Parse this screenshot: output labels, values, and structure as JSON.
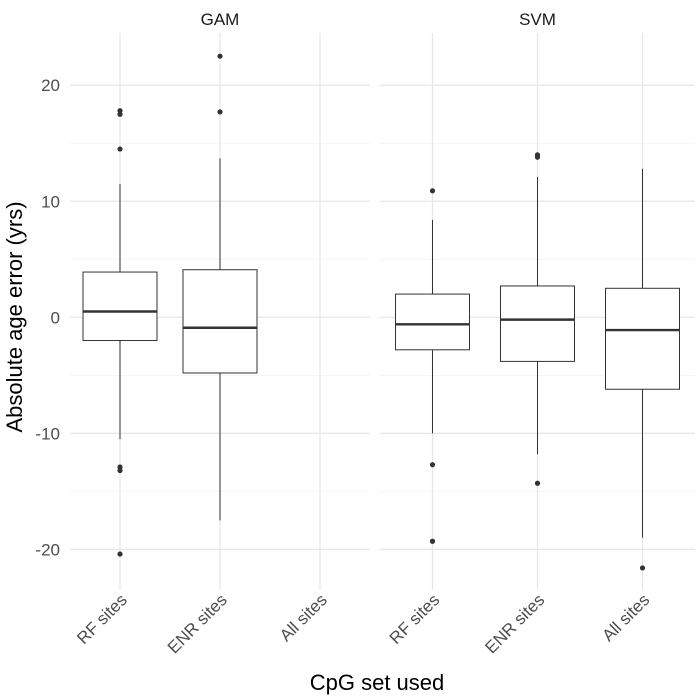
{
  "chart_data": {
    "type": "boxplot",
    "xlabel": "CpG set used",
    "ylabel": "Absolute age error (yrs)",
    "ylim": [
      -23.5,
      24.5
    ],
    "yticks": [
      -20,
      -10,
      0,
      10,
      20
    ],
    "ytick_labels": [
      "-20",
      "-10",
      "0",
      "10",
      "20"
    ],
    "grid": true,
    "categories": [
      "RF sites",
      "ENR sites",
      "All sites"
    ],
    "panels": [
      {
        "strip": "GAM",
        "boxes": [
          {
            "category": "RF sites",
            "lower_whisker": -10.5,
            "q1": -2.0,
            "median": 0.5,
            "q3": 3.9,
            "upper_whisker": 11.5,
            "outliers": [
              17.8,
              17.5,
              14.5,
              -12.9,
              -13.2,
              -20.4
            ]
          },
          {
            "category": "ENR sites",
            "lower_whisker": -17.5,
            "q1": -4.8,
            "median": -0.9,
            "q3": 4.1,
            "upper_whisker": 13.7,
            "outliers": [
              22.5,
              17.7
            ]
          }
        ]
      },
      {
        "strip": "SVM",
        "boxes": [
          {
            "category": "RF sites",
            "lower_whisker": -10.0,
            "q1": -2.8,
            "median": -0.6,
            "q3": 2.0,
            "upper_whisker": 8.4,
            "outliers": [
              10.9,
              -12.7,
              -19.3
            ]
          },
          {
            "category": "ENR sites",
            "lower_whisker": -11.8,
            "q1": -3.8,
            "median": -0.2,
            "q3": 2.7,
            "upper_whisker": 12.1,
            "outliers": [
              14.0,
              13.8,
              -14.3
            ]
          },
          {
            "category": "All sites",
            "lower_whisker": -19.0,
            "q1": -6.2,
            "median": -1.1,
            "q3": 2.5,
            "upper_whisker": 12.8,
            "outliers": [
              -21.6
            ]
          }
        ]
      }
    ]
  }
}
